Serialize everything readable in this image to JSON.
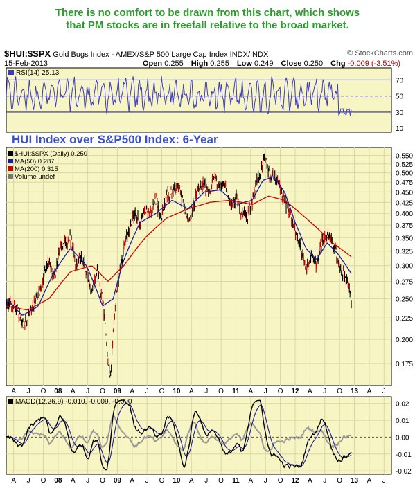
{
  "caption": {
    "line1": "There is no comfort to be drawn from this chart, which shows",
    "line2": "that PM stocks are in freefall relative to the broad market."
  },
  "header": {
    "symbol": "$HUI:$SPX",
    "description": "Gold Bugs Index - AMEX/S&P 500 Large Cap Index  INDX/INDX",
    "credit": "© StockCharts.com",
    "date": "15-Feb-2013",
    "open_label": "Open",
    "open": "0.255",
    "high_label": "High",
    "high": "0.255",
    "low_label": "Low",
    "low": "0.249",
    "close_label": "Close",
    "close": "0.250",
    "chg_label": "Chg",
    "chg": "-0.009 (-3.51%)"
  },
  "chart_data": [
    {
      "type": "line",
      "panel": "rsi",
      "legend": "RSI(14) 25.13",
      "yticks": [
        10,
        30,
        50,
        70
      ],
      "ylim": [
        5,
        85
      ],
      "reference_lines": [
        70,
        50,
        30
      ],
      "series_color": "#3a3ac8",
      "last_value": 25.13
    },
    {
      "type": "line",
      "panel": "price",
      "title": "HUI Index over S&P500 Index: 6-Year",
      "legend": [
        "$HUI:$SPX (Daily) 0.250",
        "MA(50) 0.287",
        "MA(200) 0.315",
        "Volume undef"
      ],
      "y_scale": "log",
      "yticks": [
        "0.175",
        "0.200",
        "0.225",
        "0.250",
        "0.275",
        "0.300",
        "0.325",
        "0.350",
        "0.375",
        "0.400",
        "0.425",
        "0.450",
        "0.475",
        "0.500",
        "0.525",
        "0.550"
      ],
      "ylim": [
        0.155,
        0.575
      ],
      "x_labels": [
        "A",
        "J",
        "O",
        "08",
        "A",
        "J",
        "O",
        "09",
        "A",
        "J",
        "O",
        "10",
        "A",
        "J",
        "O",
        "11",
        "A",
        "J",
        "O",
        "12",
        "A",
        "J",
        "O",
        "13",
        "A",
        "J"
      ],
      "series": [
        {
          "name": "$HUI:$SPX",
          "color": "#000000",
          "points": [
            [
              0,
              0.245
            ],
            [
              2,
              0.24
            ],
            [
              3,
              0.215
            ],
            [
              4,
              0.225
            ],
            [
              6,
              0.255
            ],
            [
              8,
              0.31
            ],
            [
              9,
              0.28
            ],
            [
              10,
              0.33
            ],
            [
              11,
              0.34
            ],
            [
              12,
              0.35
            ],
            [
              13,
              0.3
            ],
            [
              14,
              0.32
            ],
            [
              15,
              0.29
            ],
            [
              16,
              0.26
            ],
            [
              17,
              0.29
            ],
            [
              18,
              0.25
            ],
            [
              18.5,
              0.22
            ],
            [
              19,
              0.175
            ],
            [
              19.5,
              0.16
            ],
            [
              20,
              0.21
            ],
            [
              21,
              0.28
            ],
            [
              22,
              0.33
            ],
            [
              23,
              0.37
            ],
            [
              24,
              0.4
            ],
            [
              25,
              0.38
            ],
            [
              26,
              0.41
            ],
            [
              27,
              0.4
            ],
            [
              28,
              0.43
            ],
            [
              29,
              0.39
            ],
            [
              30,
              0.44
            ],
            [
              31,
              0.45
            ],
            [
              32,
              0.47
            ],
            [
              33,
              0.43
            ],
            [
              34,
              0.38
            ],
            [
              35,
              0.42
            ],
            [
              36,
              0.455
            ],
            [
              37,
              0.47
            ],
            [
              38,
              0.45
            ],
            [
              39,
              0.49
            ],
            [
              40,
              0.46
            ],
            [
              41,
              0.47
            ],
            [
              42,
              0.41
            ],
            [
              43,
              0.44
            ],
            [
              44,
              0.4
            ],
            [
              45,
              0.39
            ],
            [
              46,
              0.43
            ],
            [
              47,
              0.48
            ],
            [
              48,
              0.53
            ],
            [
              48.5,
              0.545
            ],
            [
              49,
              0.5
            ],
            [
              50,
              0.49
            ],
            [
              51,
              0.47
            ],
            [
              52,
              0.43
            ],
            [
              53,
              0.4
            ],
            [
              54,
              0.36
            ],
            [
              55,
              0.33
            ],
            [
              56,
              0.29
            ],
            [
              57,
              0.32
            ],
            [
              58,
              0.3
            ],
            [
              59,
              0.34
            ],
            [
              60,
              0.355
            ],
            [
              61,
              0.34
            ],
            [
              62,
              0.31
            ],
            [
              63,
              0.285
            ],
            [
              64,
              0.265
            ],
            [
              64.5,
              0.25
            ]
          ]
        },
        {
          "name": "MA(50)",
          "color": "#1a1aa0",
          "points": [
            [
              0,
              0.25
            ],
            [
              3,
              0.228
            ],
            [
              6,
              0.24
            ],
            [
              9,
              0.29
            ],
            [
              12,
              0.33
            ],
            [
              15,
              0.3
            ],
            [
              18,
              0.24
            ],
            [
              20,
              0.25
            ],
            [
              22,
              0.31
            ],
            [
              25,
              0.38
            ],
            [
              28,
              0.4
            ],
            [
              31,
              0.43
            ],
            [
              34,
              0.41
            ],
            [
              37,
              0.45
            ],
            [
              40,
              0.455
            ],
            [
              43,
              0.42
            ],
            [
              46,
              0.43
            ],
            [
              48,
              0.48
            ],
            [
              50,
              0.49
            ],
            [
              52,
              0.45
            ],
            [
              54,
              0.38
            ],
            [
              56,
              0.33
            ],
            [
              58,
              0.31
            ],
            [
              60,
              0.34
            ],
            [
              62,
              0.32
            ],
            [
              64.5,
              0.287
            ]
          ]
        },
        {
          "name": "MA(200)",
          "color": "#cc0000",
          "points": [
            [
              0,
              0.24
            ],
            [
              4,
              0.235
            ],
            [
              8,
              0.25
            ],
            [
              12,
              0.29
            ],
            [
              16,
              0.3
            ],
            [
              19,
              0.275
            ],
            [
              22,
              0.3
            ],
            [
              26,
              0.35
            ],
            [
              30,
              0.39
            ],
            [
              34,
              0.41
            ],
            [
              38,
              0.425
            ],
            [
              42,
              0.43
            ],
            [
              46,
              0.42
            ],
            [
              49,
              0.44
            ],
            [
              52,
              0.43
            ],
            [
              55,
              0.4
            ],
            [
              58,
              0.37
            ],
            [
              61,
              0.34
            ],
            [
              64.5,
              0.315
            ]
          ]
        }
      ]
    },
    {
      "type": "line",
      "panel": "macd",
      "legend": "MACD(12,26,9) -0.010, -0.009, -0.000",
      "yticks": [
        "0.02",
        "0.01",
        "0.00",
        "-0.01",
        "-0.02"
      ],
      "ylim": [
        -0.022,
        0.024
      ],
      "x_labels": [
        "A",
        "J",
        "O",
        "08",
        "A",
        "J",
        "O",
        "09",
        "A",
        "J",
        "O",
        "10",
        "A",
        "J",
        "O",
        "11",
        "A",
        "J",
        "O",
        "12",
        "A",
        "J",
        "O",
        "13",
        "A",
        "J"
      ],
      "series": [
        {
          "name": "MACD",
          "color": "#000000",
          "last_value": -0.01
        },
        {
          "name": "Signal",
          "color": "#1a1aa0",
          "last_value": -0.009
        },
        {
          "name": "Histogram",
          "color": "#999999",
          "last_value": -0.0
        }
      ]
    }
  ]
}
